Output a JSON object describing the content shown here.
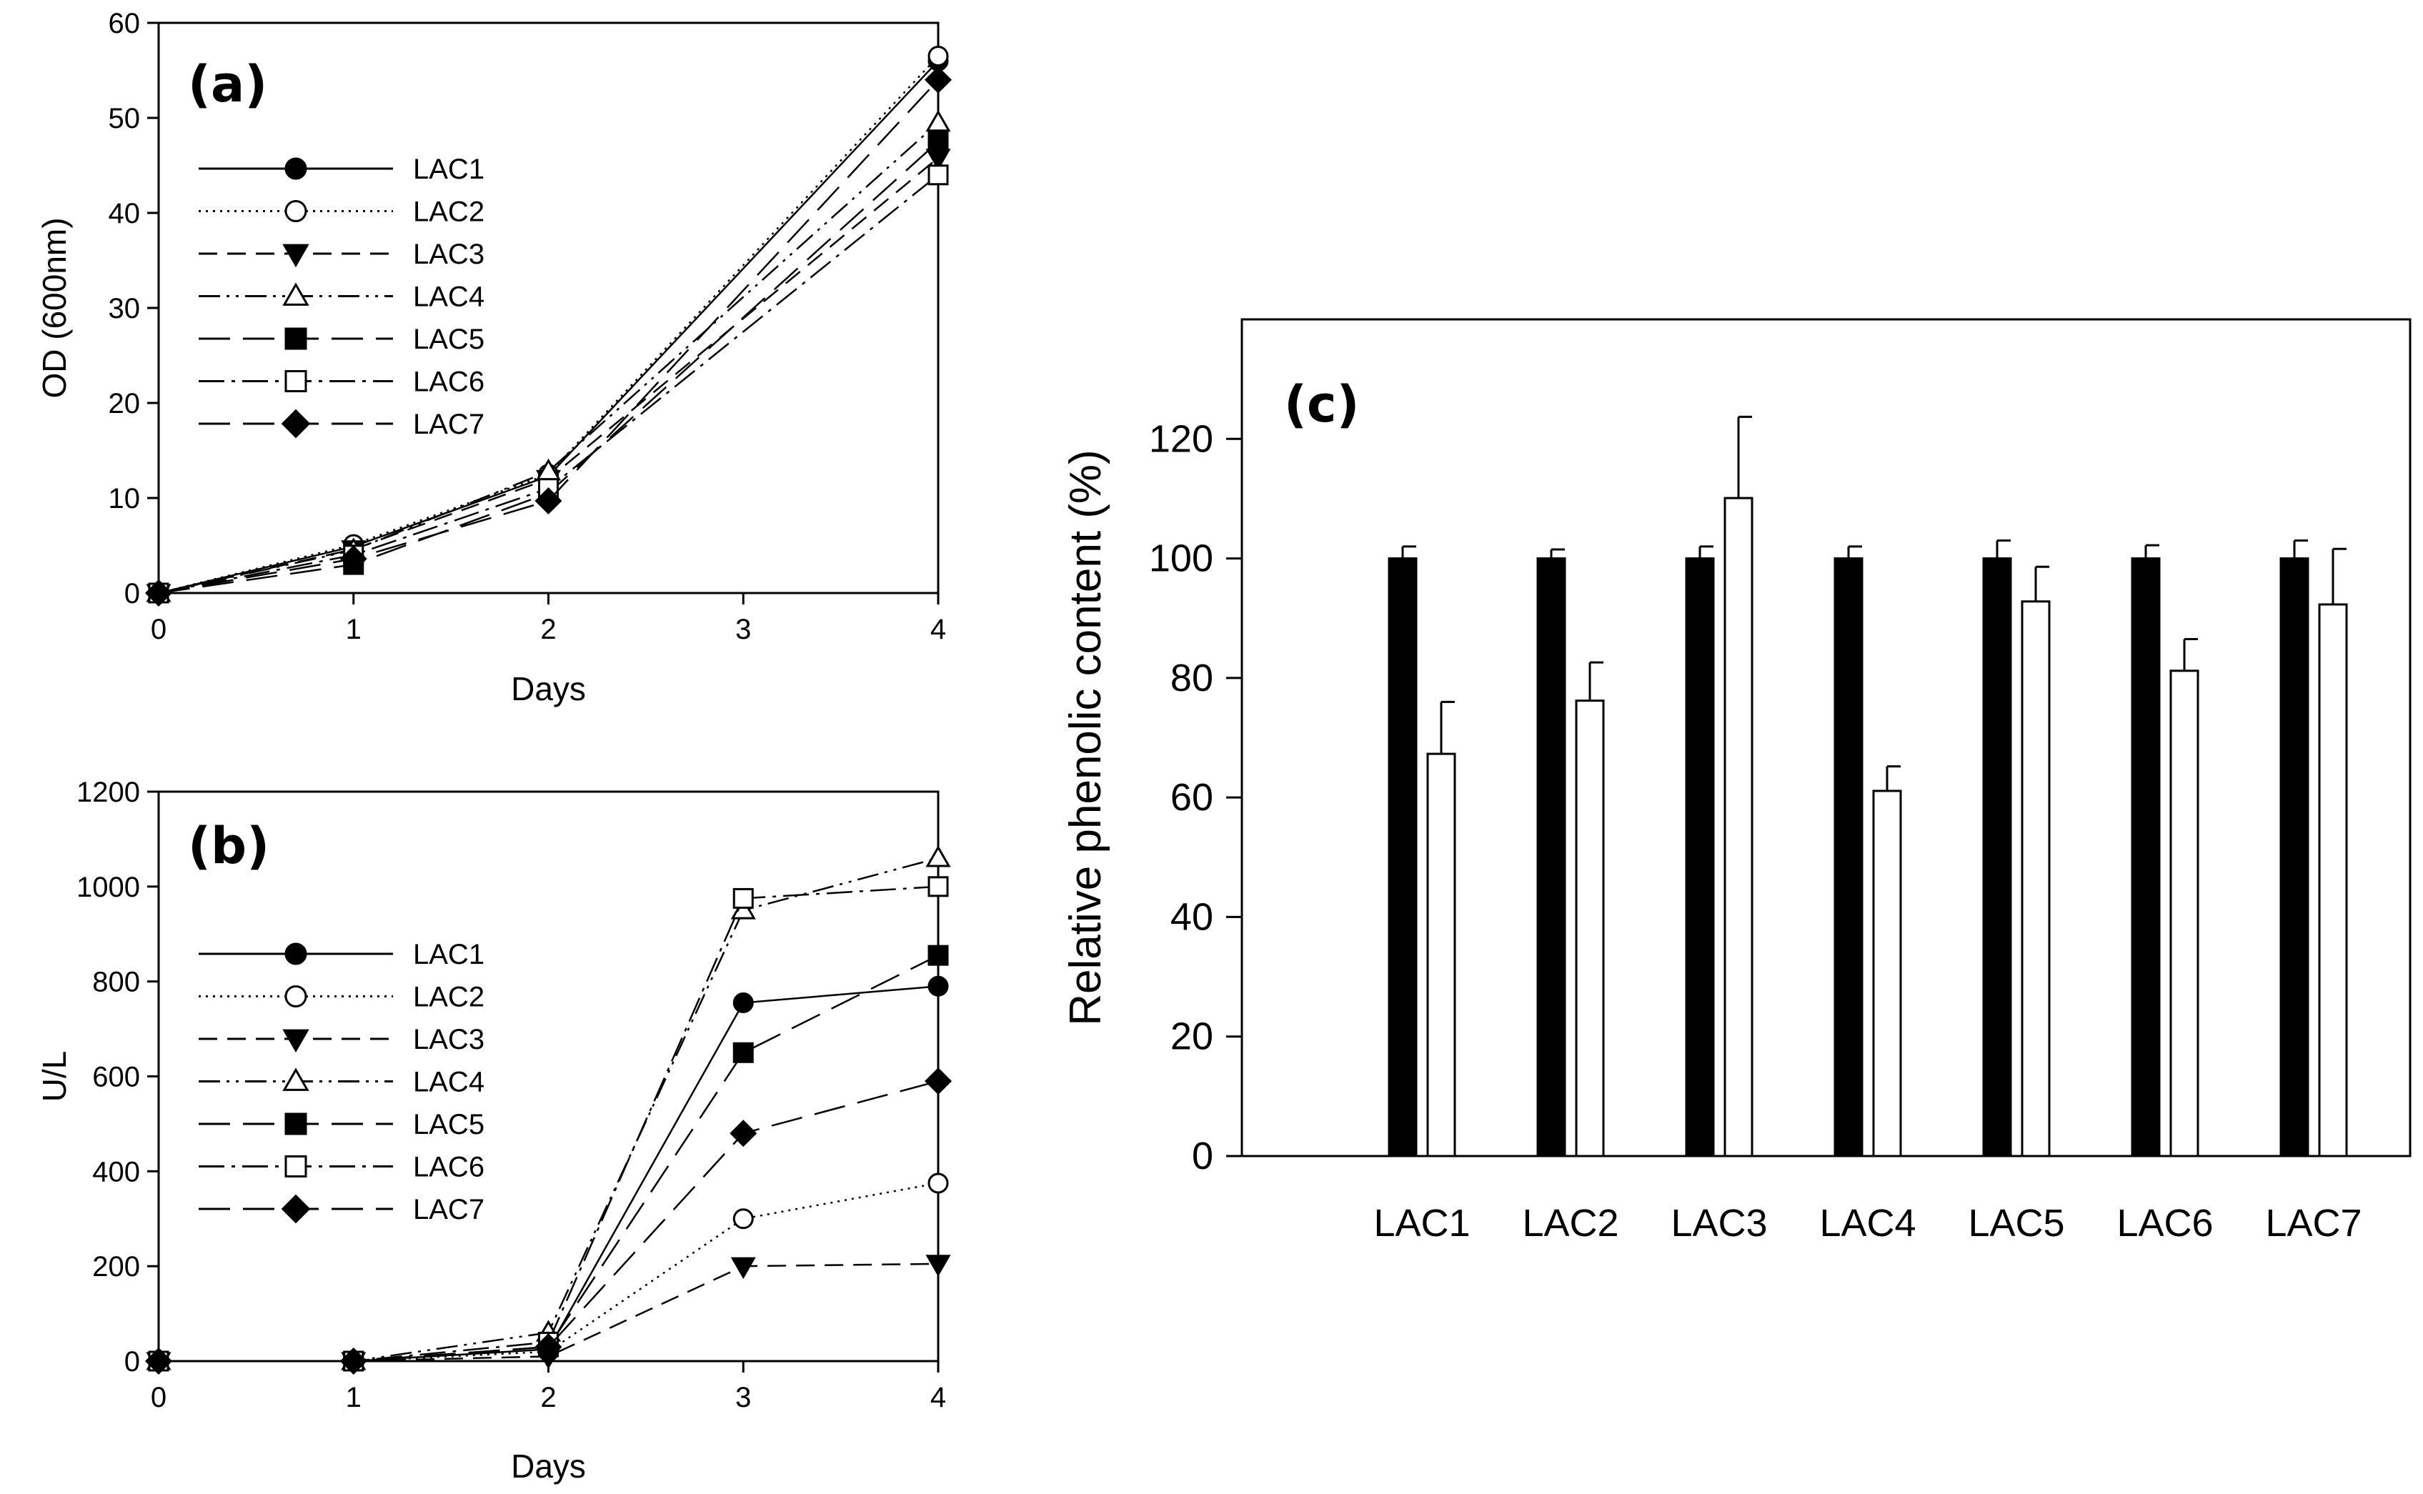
{
  "chart_data": [
    {
      "type": "line",
      "panel": "(a)",
      "xlabel": "Days",
      "ylabel": "OD (600nm)",
      "xlim": [
        0,
        4
      ],
      "ylim": [
        0,
        60
      ],
      "xticks": [
        0,
        1,
        2,
        3,
        4
      ],
      "yticks": [
        0,
        10,
        20,
        30,
        40,
        50,
        60
      ],
      "grid": false,
      "legend_position": "upper-left",
      "x": [
        0,
        1,
        2,
        4
      ],
      "series": [
        {
          "name": "LAC1",
          "marker": "circle-filled",
          "dash": "solid",
          "values": [
            0,
            4.9,
            12.3,
            56
          ]
        },
        {
          "name": "LAC2",
          "marker": "circle-open",
          "dash": "dotted",
          "values": [
            0,
            5.1,
            12.5,
            56.5
          ]
        },
        {
          "name": "LAC3",
          "marker": "triangle-down-filled",
          "dash": "dashed",
          "values": [
            0,
            4.6,
            12.0,
            45.8
          ]
        },
        {
          "name": "LAC4",
          "marker": "triangle-up-open",
          "dash": "dash-dot-dot",
          "values": [
            0,
            4.5,
            12.8,
            49.5
          ]
        },
        {
          "name": "LAC5",
          "marker": "square-filled",
          "dash": "long-dash",
          "values": [
            0,
            3.0,
            10.5,
            47.5
          ]
        },
        {
          "name": "LAC6",
          "marker": "square-open",
          "dash": "dash-dot",
          "values": [
            0,
            4.0,
            11.0,
            44.0
          ]
        },
        {
          "name": "LAC7",
          "marker": "diamond-filled",
          "dash": "long-dash",
          "values": [
            0,
            3.6,
            9.7,
            54
          ]
        }
      ]
    },
    {
      "type": "line",
      "panel": "(b)",
      "xlabel": "Days",
      "ylabel": "U/L",
      "xlim": [
        0,
        4
      ],
      "ylim": [
        0,
        1200
      ],
      "xticks": [
        0,
        1,
        2,
        3,
        4
      ],
      "yticks": [
        0,
        200,
        400,
        600,
        800,
        1000,
        1200
      ],
      "grid": false,
      "legend_position": "left",
      "x": [
        0,
        1,
        2,
        3,
        4
      ],
      "series": [
        {
          "name": "LAC1",
          "marker": "circle-filled",
          "dash": "solid",
          "values": [
            0,
            0,
            25,
            755,
            790
          ]
        },
        {
          "name": "LAC2",
          "marker": "circle-open",
          "dash": "dotted",
          "values": [
            0,
            0,
            20,
            300,
            375
          ]
        },
        {
          "name": "LAC3",
          "marker": "triangle-down-filled",
          "dash": "dashed",
          "values": [
            0,
            0,
            10,
            200,
            205
          ]
        },
        {
          "name": "LAC4",
          "marker": "triangle-up-open",
          "dash": "dash-dot-dot",
          "values": [
            0,
            0,
            60,
            950,
            1060
          ]
        },
        {
          "name": "LAC5",
          "marker": "square-filled",
          "dash": "long-dash",
          "values": [
            0,
            0,
            30,
            650,
            855
          ]
        },
        {
          "name": "LAC6",
          "marker": "square-open",
          "dash": "dash-dot",
          "values": [
            0,
            0,
            40,
            975,
            1000
          ]
        },
        {
          "name": "LAC7",
          "marker": "diamond-filled",
          "dash": "long-dash",
          "values": [
            0,
            0,
            30,
            480,
            590
          ]
        }
      ]
    },
    {
      "type": "bar",
      "panel": "(c)",
      "xlabel": "",
      "ylabel": "Relative phenolic content (%)",
      "ylim": [
        0,
        140
      ],
      "yticks": [
        0,
        20,
        40,
        60,
        80,
        100,
        120
      ],
      "grid": false,
      "categories": [
        "LAC1",
        "LAC2",
        "LAC3",
        "LAC4",
        "LAC5",
        "LAC6",
        "LAC7"
      ],
      "series": [
        {
          "color": "#000000",
          "values": [
            100,
            100,
            100,
            100,
            100,
            100,
            100
          ],
          "errors": [
            2,
            1.5,
            2,
            2,
            3,
            2.2,
            3
          ]
        },
        {
          "color": "#ffffff",
          "values": [
            67.3,
            76.2,
            110.1,
            61.1,
            92.8,
            81.2,
            92.3
          ],
          "errors": [
            8.7,
            6.4,
            13.6,
            4.1,
            5.8,
            5.3,
            9.3
          ]
        }
      ]
    }
  ]
}
